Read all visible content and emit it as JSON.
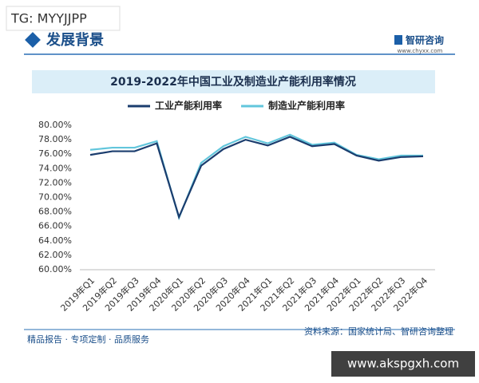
{
  "header": {
    "badge": "TG: MYYJJPP",
    "section": "发展背景",
    "logo": "智研咨询",
    "url": "www.chyxx.com"
  },
  "chart_data": {
    "type": "line",
    "title": "2019-2022年中国工业及制造业产能利用率情况",
    "categories": [
      "2019年Q1",
      "2019年Q2",
      "2019年Q3",
      "2019年Q4",
      "2020年Q1",
      "2020年Q2",
      "2020年Q3",
      "2020年Q4",
      "2021年Q1",
      "2021年Q2",
      "2021年Q3",
      "2021年Q4",
      "2022年Q1",
      "2022年Q2",
      "2022年Q3",
      "2022年Q4"
    ],
    "series": [
      {
        "name": "工业产能利用率",
        "color": "#1b3d6e",
        "values": [
          75.9,
          76.4,
          76.4,
          77.5,
          67.3,
          74.4,
          76.7,
          78.0,
          77.2,
          78.4,
          77.1,
          77.4,
          75.8,
          75.1,
          75.6,
          75.7
        ]
      },
      {
        "name": "制造业产能利用率",
        "color": "#62c6dc",
        "values": [
          76.6,
          76.9,
          76.9,
          77.8,
          67.2,
          74.8,
          77.1,
          78.4,
          77.5,
          78.7,
          77.3,
          77.6,
          75.9,
          75.3,
          75.8,
          75.8
        ]
      }
    ],
    "ylim": [
      60,
      80
    ],
    "yticks": [
      {
        "value": 60,
        "label": "60.00%"
      },
      {
        "value": 62,
        "label": "62.00%"
      },
      {
        "value": 64,
        "label": "64.00%"
      },
      {
        "value": 66,
        "label": "66.00%"
      },
      {
        "value": 68,
        "label": "68.00%"
      },
      {
        "value": 70,
        "label": "70.00%"
      },
      {
        "value": 72,
        "label": "72.00%"
      },
      {
        "value": 74,
        "label": "74.00%"
      },
      {
        "value": 76,
        "label": "76.00%"
      },
      {
        "value": 78,
        "label": "78.00%"
      },
      {
        "value": 80,
        "label": "80.00%"
      }
    ],
    "grid": false
  },
  "footer": {
    "left": "精品报告 · 专项定制 · 品质服务",
    "source": "资料来源：国家统计局、智研咨询整理"
  },
  "watermark": "www.akspgxh.com"
}
